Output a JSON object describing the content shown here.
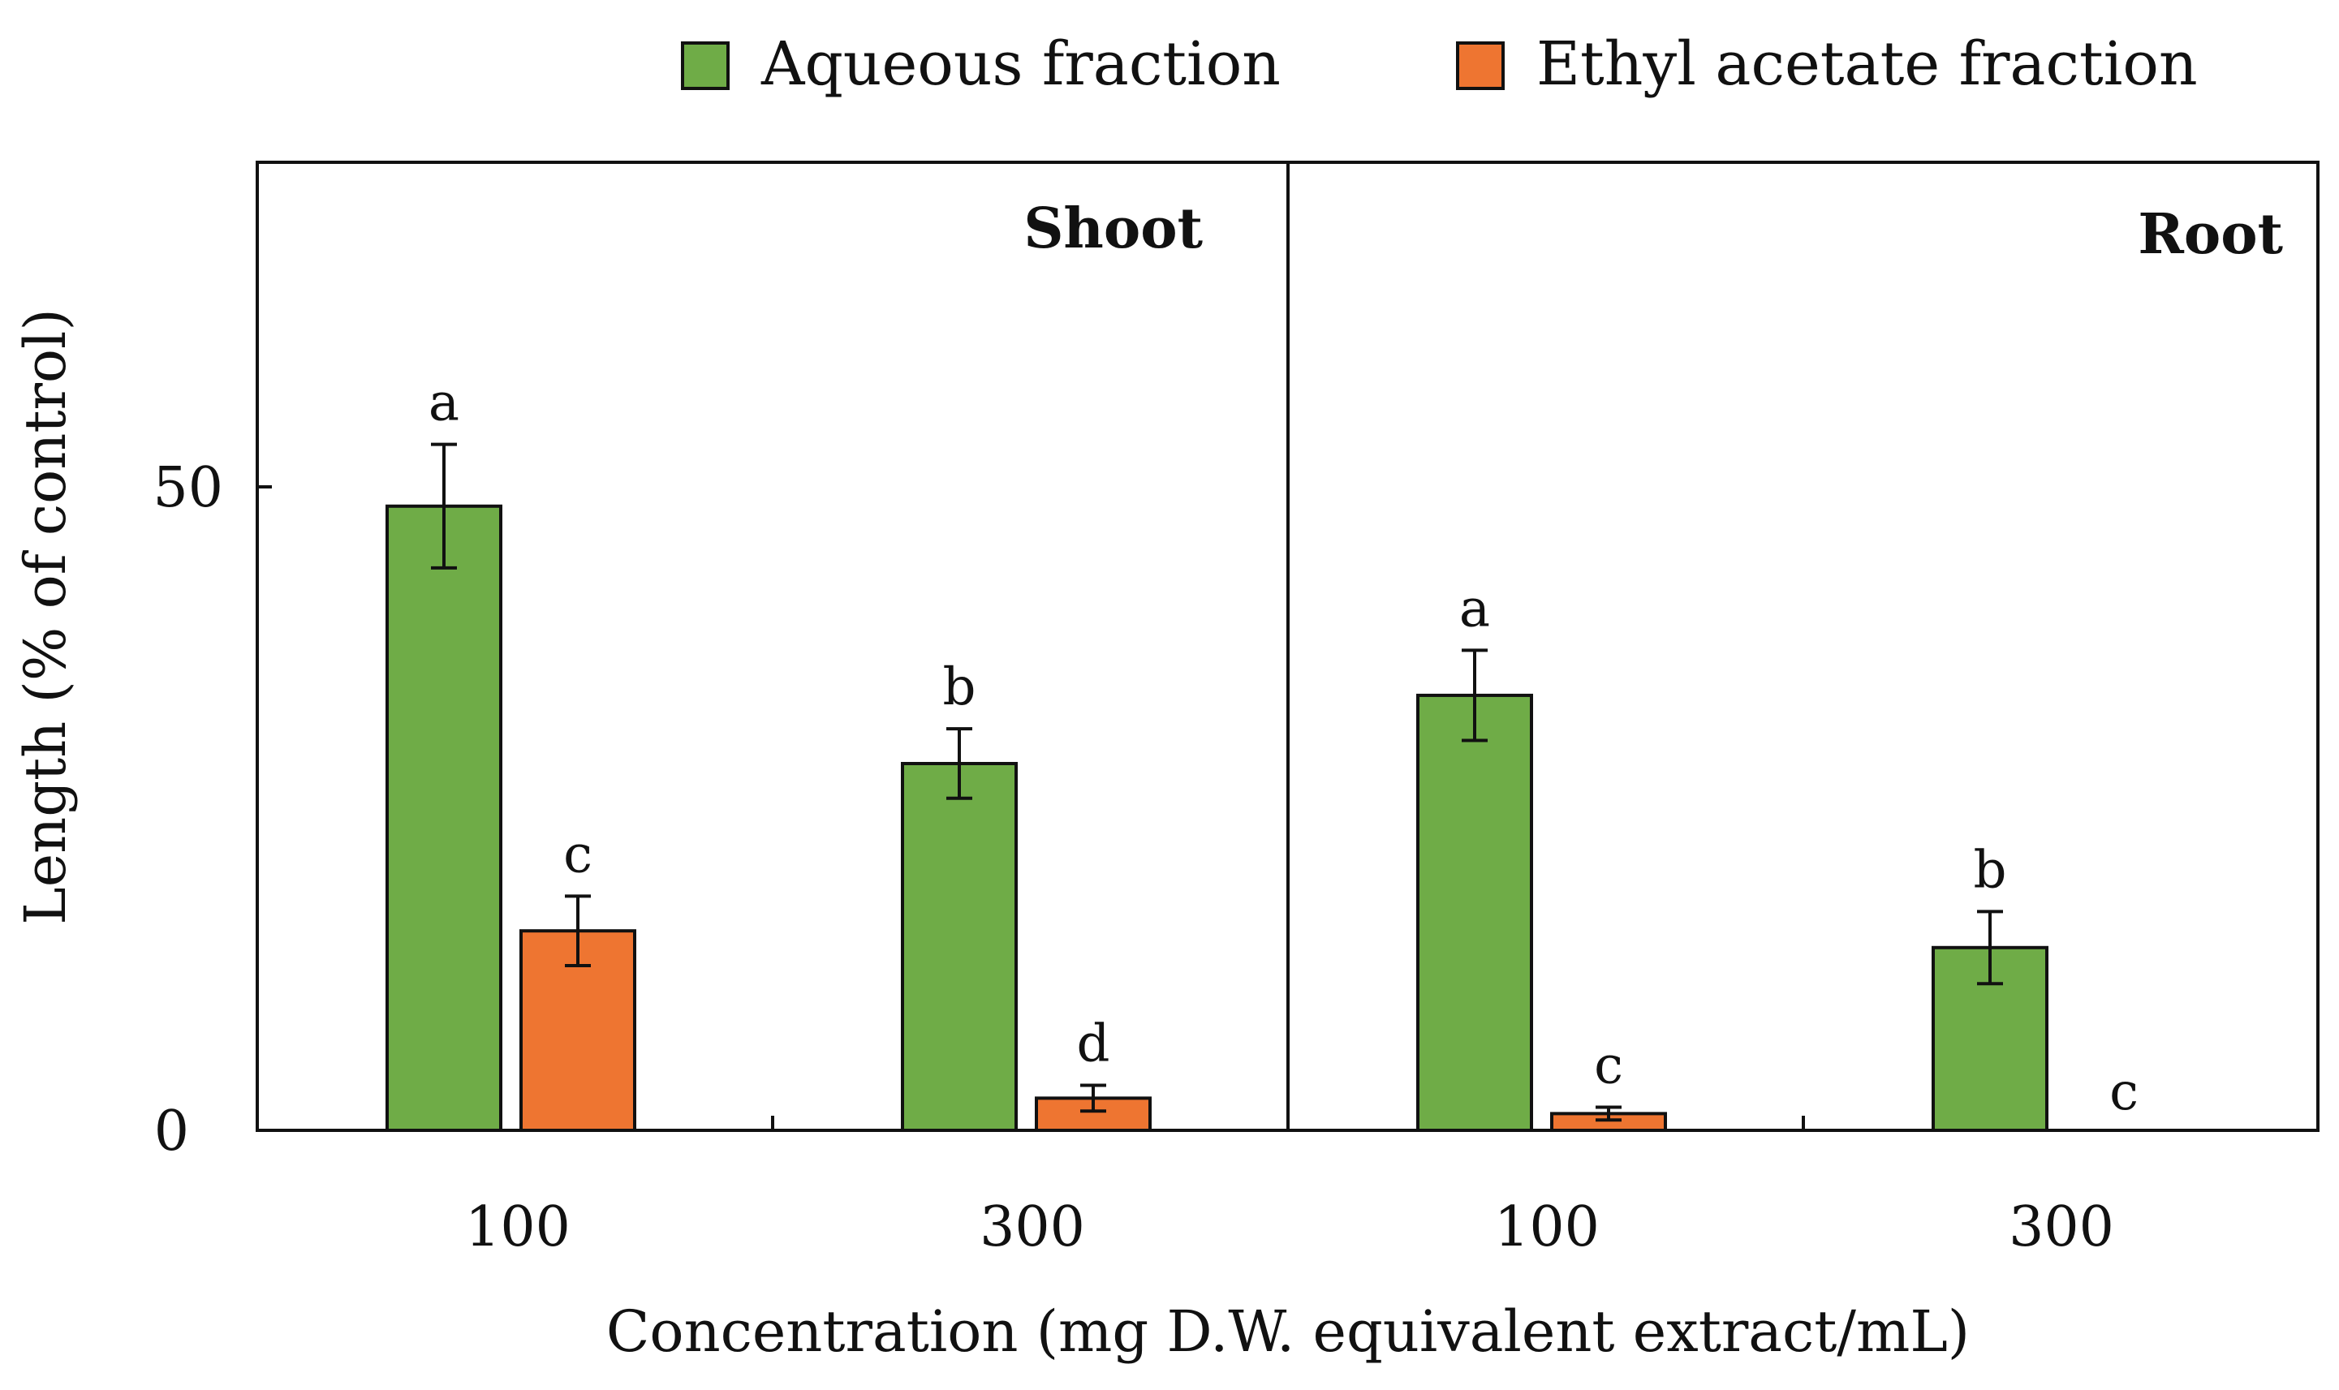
{
  "chart_data": {
    "type": "bar",
    "title": "",
    "xlabel": "Concentration (mg D.W. equivalent extract/mL)",
    "ylabel": "Length (% of control)",
    "ylim": [
      0,
      75
    ],
    "yticks": [
      0,
      50
    ],
    "grid": false,
    "legend": {
      "position": "top",
      "entries": [
        {
          "name": "Aqueous fraction",
          "color": "#6fac47"
        },
        {
          "name": "Ethyl acetate fraction",
          "color": "#ee7531"
        }
      ]
    },
    "colors": {
      "aqueous": "#6fac47",
      "ethyl": "#ee7531",
      "stroke": "#111111"
    },
    "panels": [
      {
        "label": "Shoot",
        "categories": [
          "100",
          "300"
        ],
        "series": [
          {
            "name": "Aqueous fraction",
            "values": [
              48.5,
              28.5
            ],
            "errors": [
              4.8,
              2.7
            ],
            "significance": [
              "a",
              "b"
            ]
          },
          {
            "name": "Ethyl acetate fraction",
            "values": [
              15.5,
              2.5
            ],
            "errors": [
              2.7,
              1.0
            ],
            "significance": [
              "c",
              "d"
            ]
          }
        ]
      },
      {
        "label": "Root",
        "categories": [
          "100",
          "300"
        ],
        "series": [
          {
            "name": "Aqueous fraction",
            "values": [
              33.8,
              14.2
            ],
            "errors": [
              3.5,
              2.8
            ],
            "significance": [
              "a",
              "b"
            ]
          },
          {
            "name": "Ethyl acetate fraction",
            "values": [
              1.3,
              0.0
            ],
            "errors": [
              0.5,
              0.0
            ],
            "significance": [
              "c",
              "c"
            ]
          }
        ]
      }
    ]
  }
}
